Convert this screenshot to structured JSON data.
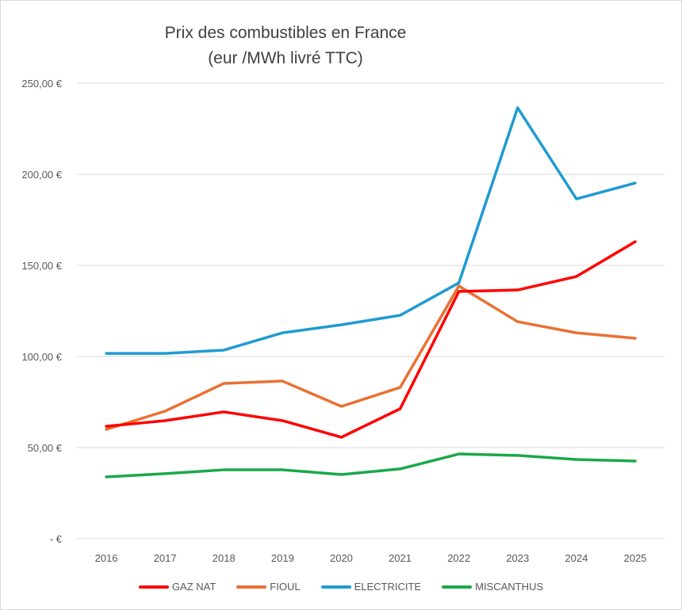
{
  "chart_data": {
    "type": "line",
    "title_lines": [
      "Prix des combustibles en France",
      "(eur /MWh livré TTC)"
    ],
    "xlabel": "",
    "ylabel": "",
    "categories": [
      "2016",
      "2017",
      "2018",
      "2019",
      "2020",
      "2021",
      "2022",
      "2023",
      "2024",
      "2025"
    ],
    "ylim": [
      0,
      250
    ],
    "yticks": [
      0,
      50,
      100,
      150,
      200,
      250
    ],
    "ytick_labels": [
      "-  €",
      "50,00 €",
      "100,00 €",
      "150,00 €",
      "200,00 €",
      "250,00 €"
    ],
    "grid": "horizontal",
    "legend_position": "bottom",
    "series": [
      {
        "name": "GAZ NAT",
        "color": "#ff0000",
        "values": [
          61.7,
          64.8,
          69.6,
          64.8,
          55.7,
          71.3,
          135.7,
          136.5,
          143.9,
          163.0
        ]
      },
      {
        "name": "FIOUL",
        "color": "#e97132",
        "values": [
          60.0,
          70.0,
          85.2,
          86.5,
          72.6,
          83.0,
          138.7,
          119.1,
          113.0,
          110.0
        ]
      },
      {
        "name": "ELECTRICITE",
        "color": "#1f9bd1",
        "values": [
          101.7,
          101.7,
          103.5,
          113.0,
          117.4,
          122.6,
          140.4,
          236.5,
          186.5,
          195.2
        ]
      },
      {
        "name": "MISCANTHUS",
        "color": "#1aa84a",
        "values": [
          33.9,
          35.7,
          37.8,
          37.8,
          35.2,
          38.3,
          46.5,
          45.7,
          43.5,
          42.6
        ]
      }
    ]
  }
}
